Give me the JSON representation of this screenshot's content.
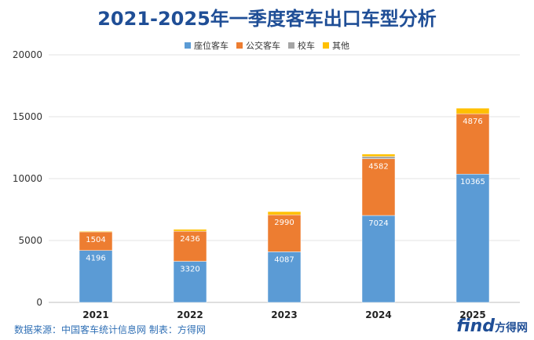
{
  "chart_data": {
    "type": "bar",
    "stacked": true,
    "title": "2021-2025年一季度客车出口车型分析",
    "categories": [
      "2021",
      "2022",
      "2023",
      "2024",
      "2025"
    ],
    "series": [
      {
        "name": "座位客车",
        "color": "#5b9bd5",
        "values": [
          4196,
          3320,
          4087,
          7024,
          10365
        ],
        "labels": [
          "4196",
          "3320",
          "4087",
          "7024",
          "10365"
        ]
      },
      {
        "name": "公交客车",
        "color": "#ed7d31",
        "values": [
          1504,
          2436,
          2990,
          4582,
          4876
        ],
        "labels": [
          "1504",
          "2436",
          "2990",
          "4582",
          "4876"
        ]
      },
      {
        "name": "校车",
        "color": "#a5a5a5",
        "values": [
          0,
          0,
          0,
          180,
          0
        ]
      },
      {
        "name": "其他",
        "color": "#ffc000",
        "values": [
          60,
          150,
          260,
          200,
          450
        ]
      }
    ],
    "ylim": [
      0,
      20000
    ],
    "yticks": [
      "0",
      "5000",
      "10000",
      "15000",
      "20000"
    ],
    "legend_position": "top-center",
    "grid": true
  },
  "footer": {
    "source": "数据来源：中国客车统计信息网  制表：方得网",
    "logo_text": "find",
    "logo_cn": "方得网"
  }
}
